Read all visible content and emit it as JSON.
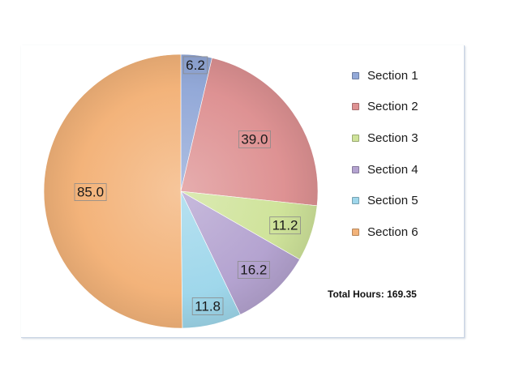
{
  "chart_data": {
    "type": "pie",
    "title": "",
    "start_angle_deg": 0,
    "direction": "clockwise",
    "categories": [
      "Section 1",
      "Section 2",
      "Section 3",
      "Section 4",
      "Section 5",
      "Section 6"
    ],
    "values": [
      6.2,
      39.0,
      11.2,
      16.2,
      11.8,
      85.0
    ],
    "data_labels": [
      "6.2",
      "39.0",
      "11.2",
      "16.2",
      "11.8",
      "85.0"
    ],
    "colors": [
      "#93a9d8",
      "#de9293",
      "#cfe39a",
      "#b4a3d0",
      "#9fd7eb",
      "#f3b37a"
    ],
    "legend": {
      "position": "right",
      "entries": [
        "Section 1",
        "Section 2",
        "Section 3",
        "Section 4",
        "Section 5",
        "Section 6"
      ]
    }
  },
  "annotation": {
    "total_hours": "Total Hours: 169.35"
  }
}
